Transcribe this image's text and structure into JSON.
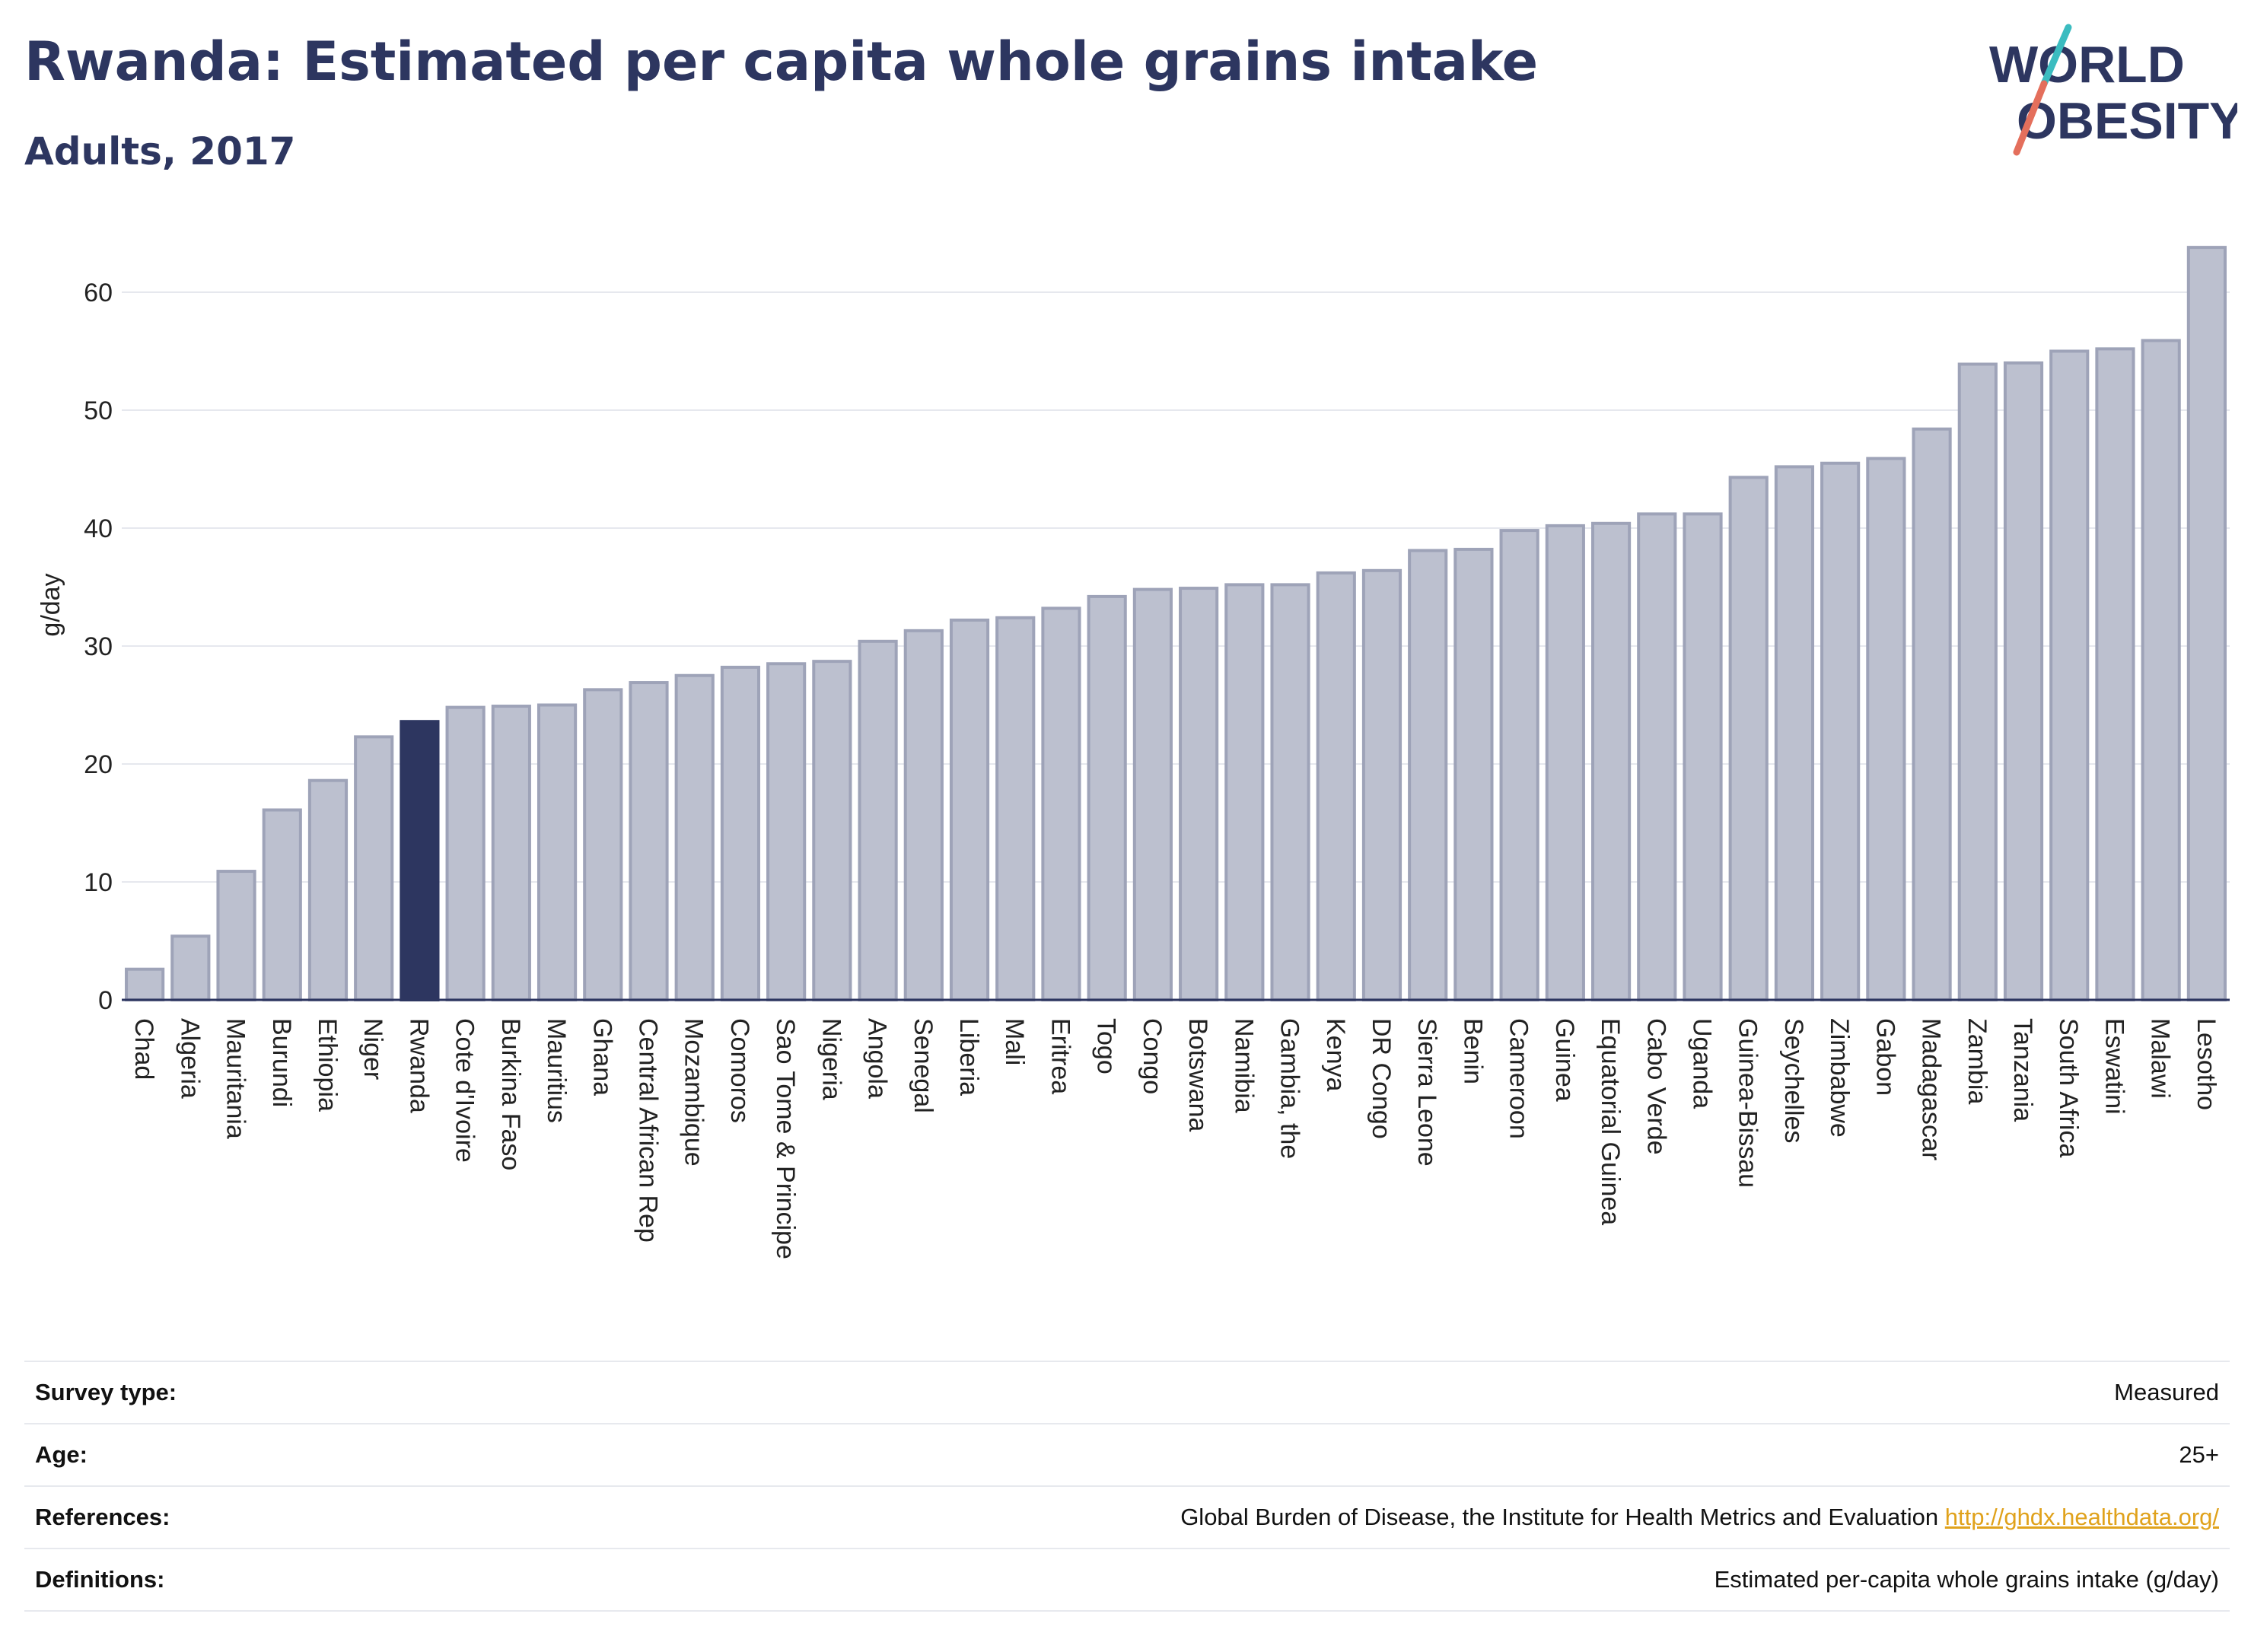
{
  "header": {
    "title": "Rwanda: Estimated per capita whole grains intake",
    "subtitle": "Adults, 2017"
  },
  "logo": {
    "line1": "WORLD",
    "line2": "OBESITY"
  },
  "colors": {
    "title": "#2d3660",
    "highlight_bar": "#2d3660",
    "bar_fill": "#bcc0cf",
    "bar_stroke": "#9ea3b8",
    "grid": "#e6e8ee",
    "logo_teal": "#3bbcc0",
    "logo_coral": "#e46f5c",
    "link": "#e0a21c"
  },
  "chart_data": {
    "type": "bar",
    "ylabel": "g/day",
    "xlabel": "",
    "ylim": [
      0,
      65
    ],
    "yticks": [
      0,
      10,
      20,
      30,
      40,
      50,
      60
    ],
    "highlight": "Rwanda",
    "categories": [
      "Chad",
      "Algeria",
      "Mauritania",
      "Burundi",
      "Ethiopia",
      "Niger",
      "Rwanda",
      "Cote d'Ivoire",
      "Burkina Faso",
      "Mauritius",
      "Ghana",
      "Central African Rep",
      "Mozambique",
      "Comoros",
      "Sao Tome & Principe",
      "Nigeria",
      "Angola",
      "Senegal",
      "Liberia",
      "Mali",
      "Eritrea",
      "Togo",
      "Congo",
      "Botswana",
      "Namibia",
      "Gambia, the",
      "Kenya",
      "DR Congo",
      "Sierra Leone",
      "Benin",
      "Cameroon",
      "Guinea",
      "Equatorial Guinea",
      "Cabo Verde",
      "Uganda",
      "Guinea-Bissau",
      "Seychelles",
      "Zimbabwe",
      "Gabon",
      "Madagascar",
      "Zambia",
      "Tanzania",
      "South Africa",
      "Eswatini",
      "Malawi",
      "Lesotho"
    ],
    "values": [
      2.6,
      5.4,
      10.9,
      16.1,
      18.6,
      22.3,
      23.6,
      24.8,
      24.9,
      25.0,
      26.3,
      26.9,
      27.5,
      28.2,
      28.5,
      28.7,
      30.4,
      31.3,
      32.2,
      32.4,
      33.2,
      34.2,
      34.8,
      34.9,
      35.2,
      35.2,
      36.2,
      36.4,
      38.1,
      38.2,
      39.8,
      40.2,
      40.4,
      41.2,
      41.2,
      44.3,
      45.2,
      45.5,
      45.9,
      48.4,
      53.9,
      54.0,
      55.0,
      55.2,
      55.9,
      63.8
    ]
  },
  "info": {
    "survey_type_label": "Survey type:",
    "survey_type_value": "Measured",
    "age_label": "Age:",
    "age_value": "25+",
    "references_label": "References:",
    "references_value": "Global Burden of Disease, the Institute for Health Metrics and Evaluation ",
    "references_link": "http://ghdx.healthdata.org/",
    "definitions_label": "Definitions:",
    "definitions_value": "Estimated per-capita whole grains intake (g/day)"
  }
}
